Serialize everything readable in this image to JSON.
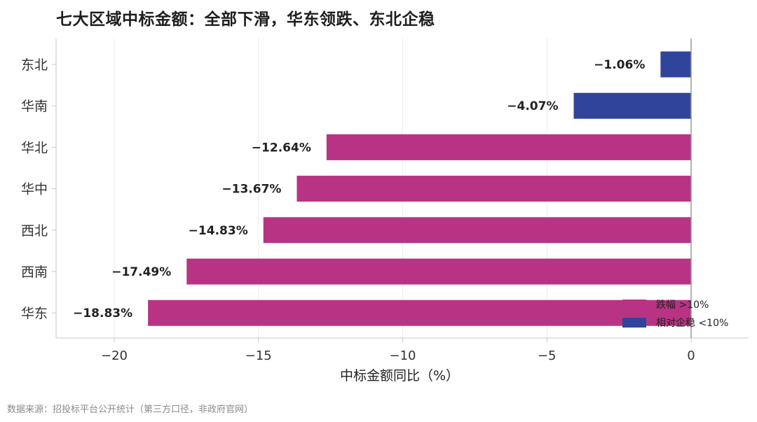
{
  "chart_data": {
    "type": "bar",
    "orientation": "horizontal",
    "title": "七大区域中标金额：全部下滑，华东领跌、东北企稳",
    "xlabel": "中标金额同比（%）",
    "ylabel": "",
    "xlim": [
      -22,
      2
    ],
    "xticks": [
      -20,
      -15,
      -10,
      -5,
      0
    ],
    "xtick_labels": [
      "−20",
      "−15",
      "−10",
      "−5",
      "0"
    ],
    "grid": "vertical",
    "legend_position": "bottom-right",
    "categories": [
      "东北",
      "华南",
      "华北",
      "华中",
      "西北",
      "西南",
      "华东"
    ],
    "values": [
      -1.06,
      -4.07,
      -12.64,
      -13.67,
      -14.83,
      -17.49,
      -18.83
    ],
    "value_labels": [
      "−1.06%",
      "−4.07%",
      "−12.64%",
      "−13.67%",
      "−14.83%",
      "−17.49%",
      "−18.83%"
    ],
    "groups": [
      "stable",
      "stable",
      "drop",
      "drop",
      "drop",
      "drop",
      "drop"
    ],
    "legend": [
      {
        "key": "drop",
        "label": "跌幅 >10%",
        "color": "#b83384"
      },
      {
        "key": "stable",
        "label": "相对企稳 <10%",
        "color": "#30449c"
      }
    ]
  },
  "source": "数据来源：招投标平台公开统计（第三方口径，非政府官网）"
}
